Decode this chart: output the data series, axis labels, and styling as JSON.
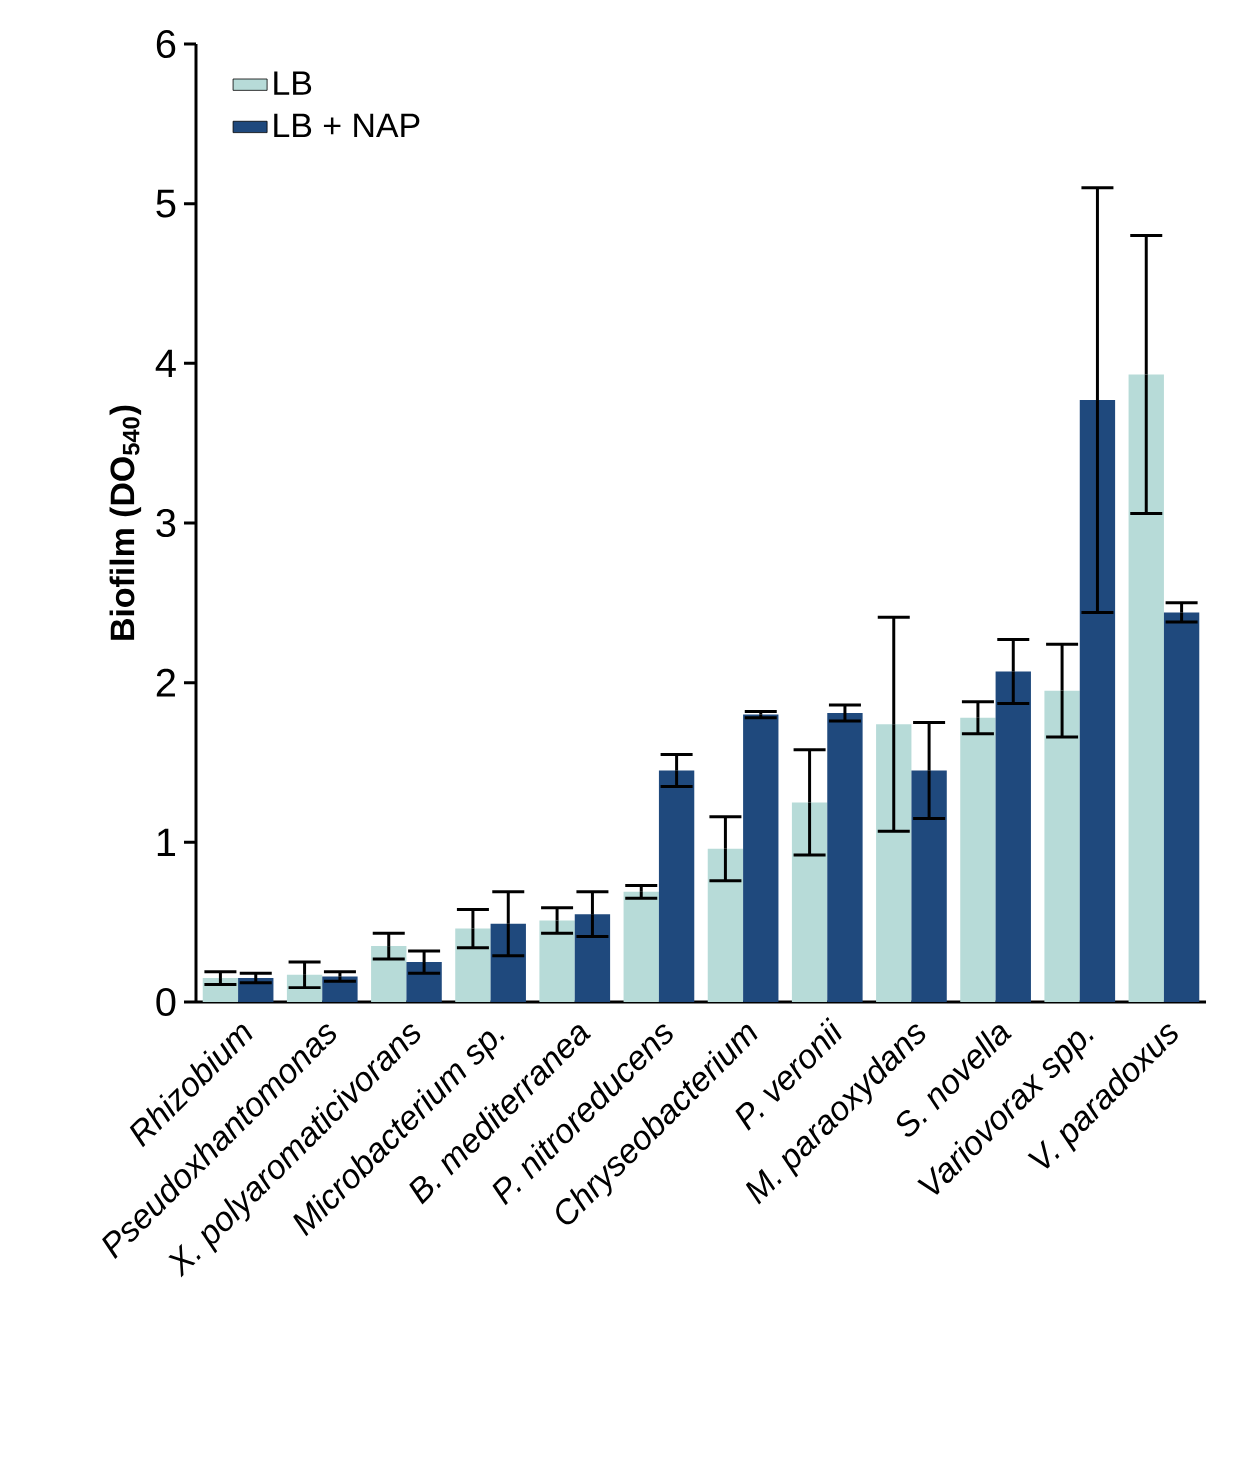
{
  "chart_data": {
    "type": "bar",
    "ylabel": "Biofilm (DO$_{540}$)",
    "categories": [
      "Rhizobium",
      "Pseudoxhantomonas",
      "X. polyaromaticivorans",
      "Microbacterium sp.",
      "B. mediterranea",
      "P. nitroreducens",
      "Chryseobacterium",
      "P. veronii",
      "M. paraoxydans",
      "S. novella",
      "Variovorax spp.",
      "V. paradoxus"
    ],
    "series": [
      {
        "name": "LB",
        "color": "#b7dbd8",
        "values": [
          0.15,
          0.17,
          0.35,
          0.46,
          0.51,
          0.69,
          0.96,
          1.25,
          1.74,
          1.78,
          1.95,
          3.93
        ],
        "errors": [
          0.04,
          0.08,
          0.08,
          0.12,
          0.08,
          0.04,
          0.2,
          0.33,
          0.67,
          0.1,
          0.29,
          0.87
        ]
      },
      {
        "name": "LB + NAP",
        "color": "#1f497d",
        "values": [
          0.15,
          0.16,
          0.25,
          0.49,
          0.55,
          1.45,
          1.8,
          1.81,
          1.45,
          2.07,
          3.77,
          2.44
        ],
        "errors": [
          0.03,
          0.03,
          0.07,
          0.2,
          0.14,
          0.1,
          0.02,
          0.05,
          0.3,
          0.2,
          1.33,
          0.06
        ]
      }
    ],
    "ylim": [
      0,
      6
    ],
    "yticks": [
      0,
      1,
      2,
      3,
      4,
      5,
      6
    ],
    "legend": "top left"
  }
}
